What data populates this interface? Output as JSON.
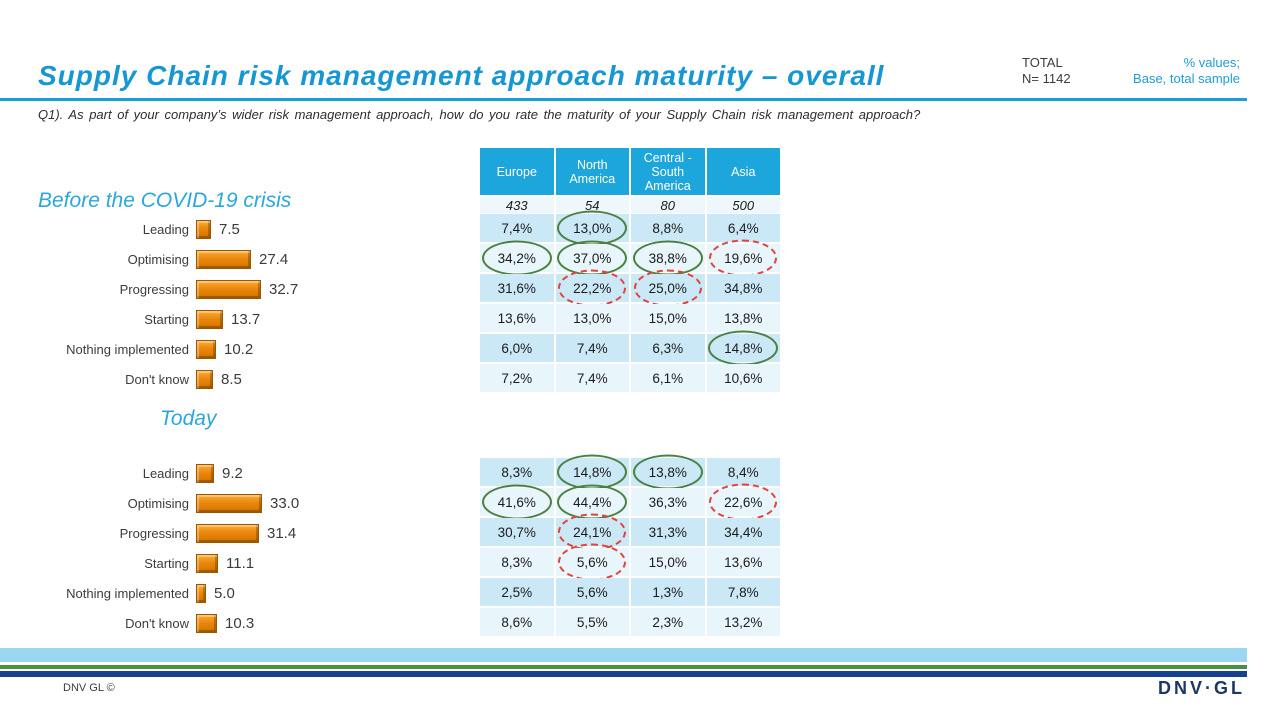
{
  "header": {
    "title": "Supply Chain risk management approach maturity – overall",
    "total_label": "TOTAL",
    "total_value": "N= 1142",
    "note_line1": "% values;",
    "note_line2": "Base, total sample",
    "question": "Q1). As part of your company’s wider risk management approach, how do you rate the maturity of your Supply Chain risk management approach?"
  },
  "region_table": {
    "columns": [
      "Europe",
      "North America",
      "Central - South America",
      "Asia"
    ],
    "base": [
      "433",
      "54",
      "80",
      "500"
    ]
  },
  "chart_data": [
    {
      "type": "bar",
      "title": "Before the COVID-19 crisis",
      "orientation": "horizontal",
      "categories": [
        "Leading",
        "Optimising",
        "Progressing",
        "Starting",
        "Nothing implemented",
        "Don't know"
      ],
      "values": [
        7.5,
        27.4,
        32.7,
        13.7,
        10.2,
        8.5
      ],
      "labels": [
        "7.5",
        "27.4",
        "32.7",
        "13.7",
        "10.2",
        "8.5"
      ],
      "xlim": [
        0,
        40
      ],
      "bar_color": "#E8860C"
    },
    {
      "type": "bar",
      "title": "Today",
      "orientation": "horizontal",
      "categories": [
        "Leading",
        "Optimising",
        "Progressing",
        "Starting",
        "Nothing implemented",
        "Don't know"
      ],
      "values": [
        9.2,
        33.0,
        31.4,
        11.1,
        5.0,
        10.3
      ],
      "labels": [
        "9.2",
        "33.0",
        "31.4",
        "11.1",
        "5.0",
        "10.3"
      ],
      "xlim": [
        0,
        40
      ],
      "bar_color": "#E8860C"
    },
    {
      "type": "table",
      "title": "Before the COVID-19 crisis",
      "columns": [
        "Europe",
        "North America",
        "Central - South America",
        "Asia"
      ],
      "base": [
        "433",
        "54",
        "80",
        "500"
      ],
      "row_labels": [
        "Leading",
        "Optimising",
        "Progressing",
        "Starting",
        "Nothing implemented",
        "Don't know"
      ],
      "rows": [
        [
          "7,4%",
          "13,0%",
          "8,8%",
          "6,4%"
        ],
        [
          "34,2%",
          "37,0%",
          "38,8%",
          "19,6%"
        ],
        [
          "31,6%",
          "22,2%",
          "25,0%",
          "34,8%"
        ],
        [
          "13,6%",
          "13,0%",
          "15,0%",
          "13,8%"
        ],
        [
          "6,0%",
          "7,4%",
          "6,3%",
          "14,8%"
        ],
        [
          "7,2%",
          "7,4%",
          "6,1%",
          "10,6%"
        ]
      ],
      "highlights": [
        [
          "",
          "green",
          "",
          ""
        ],
        [
          "green",
          "green",
          "green",
          "red"
        ],
        [
          "",
          "red",
          "red",
          ""
        ],
        [
          "",
          "",
          "",
          ""
        ],
        [
          "",
          "",
          "",
          "green"
        ],
        [
          "",
          "",
          "",
          ""
        ]
      ]
    },
    {
      "type": "table",
      "title": "Today",
      "columns": [
        "Europe",
        "North America",
        "Central - South America",
        "Asia"
      ],
      "base": [
        "433",
        "54",
        "80",
        "500"
      ],
      "row_labels": [
        "Leading",
        "Optimising",
        "Progressing",
        "Starting",
        "Nothing implemented",
        "Don't know"
      ],
      "rows": [
        [
          "8,3%",
          "14,8%",
          "13,8%",
          "8,4%"
        ],
        [
          "41,6%",
          "44,4%",
          "36,3%",
          "22,6%"
        ],
        [
          "30,7%",
          "24,1%",
          "31,3%",
          "34,4%"
        ],
        [
          "8,3%",
          "5,6%",
          "15,0%",
          "13,6%"
        ],
        [
          "2,5%",
          "5,6%",
          "1,3%",
          "7,8%"
        ],
        [
          "8,6%",
          "5,5%",
          "2,3%",
          "13,2%"
        ]
      ],
      "highlights": [
        [
          "",
          "green",
          "green",
          ""
        ],
        [
          "green",
          "green",
          "",
          "red"
        ],
        [
          "",
          "red",
          "",
          ""
        ],
        [
          "",
          "red",
          "",
          ""
        ],
        [
          "",
          "",
          "",
          ""
        ],
        [
          "",
          "",
          "",
          ""
        ]
      ]
    }
  ],
  "colors": {
    "title_blue": "#1697D3",
    "accent_blue": "#1E9CD7",
    "section_blue": "#2AA7DF",
    "table_header_blue": "#1CA6DB",
    "row_odd": "#CBE8F6",
    "row_even": "#E8F5FB",
    "base_row": "#EDF7FC",
    "bar_orange": "#E8860C",
    "highlight_green": "#4A8040",
    "highlight_red": "#E2423C",
    "stripe_lightblue": "#9BD7F0",
    "stripe_green": "#4B8F41",
    "stripe_navy": "#15418D",
    "logo_navy": "#1B3865"
  },
  "footer": {
    "copyright": "DNV GL ©",
    "logo_text": "DNV·GL"
  }
}
